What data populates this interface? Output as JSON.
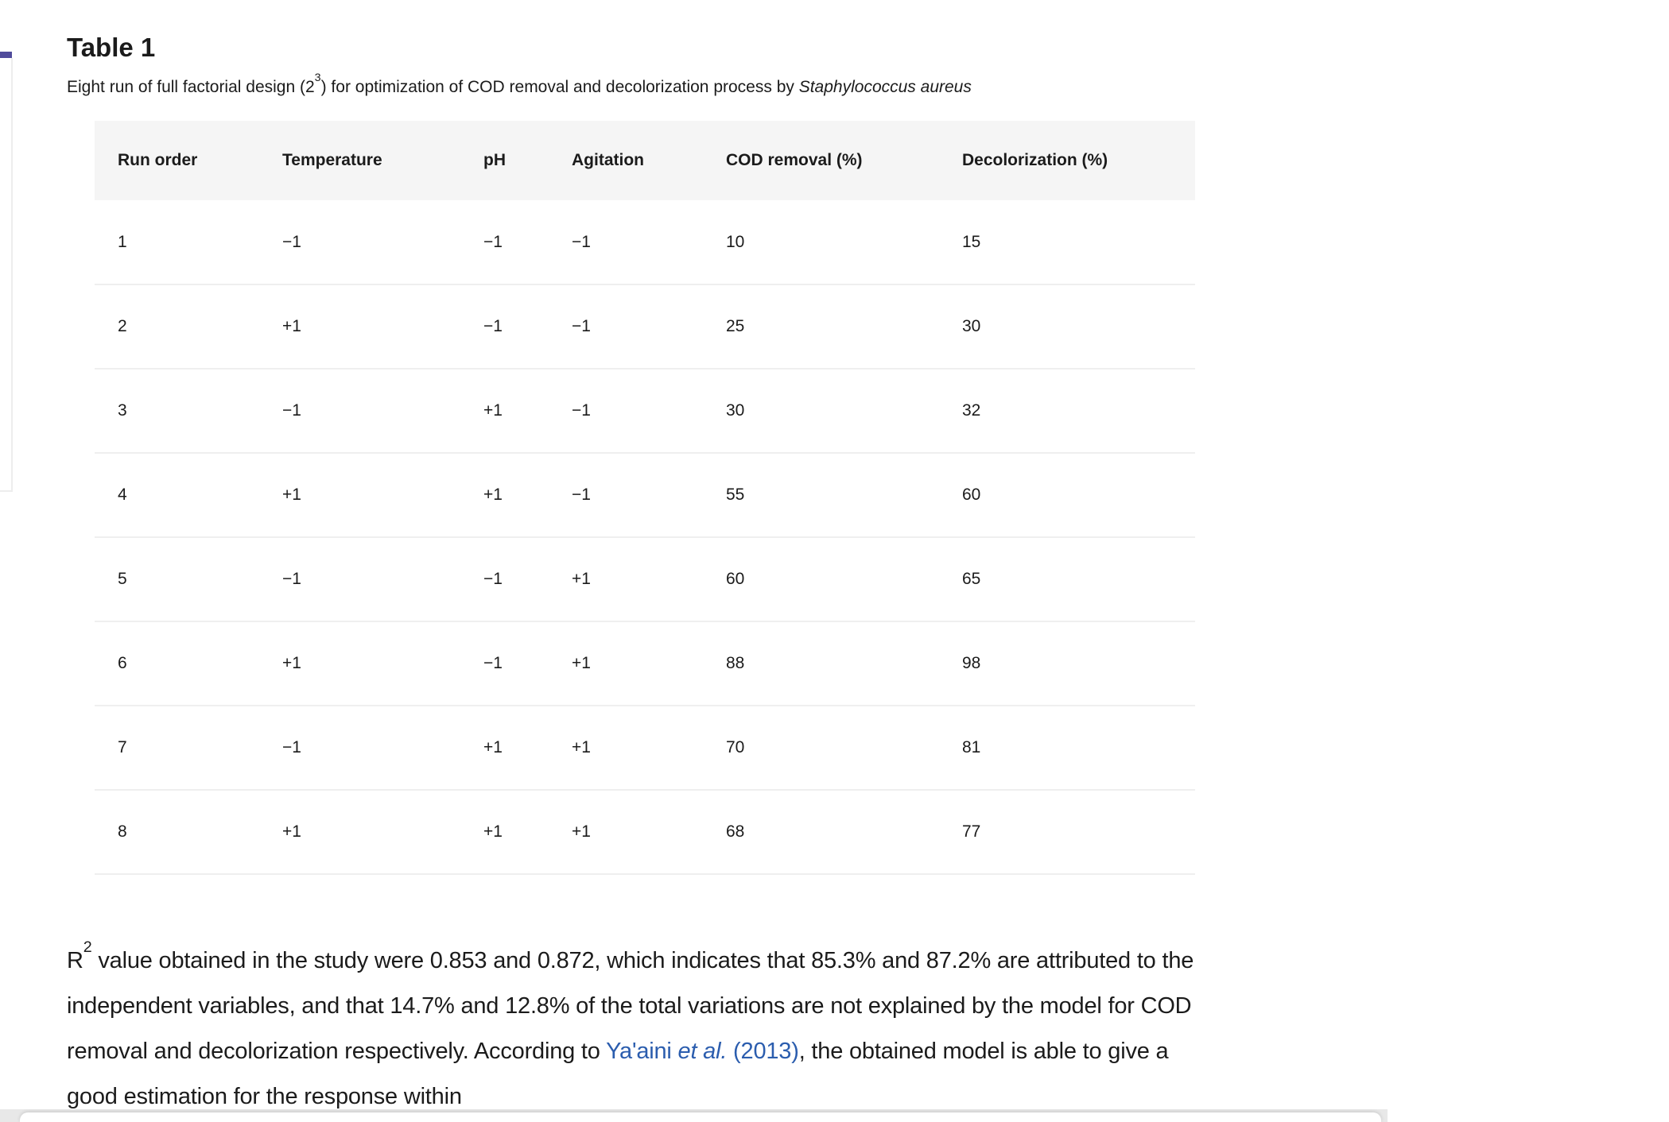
{
  "page": {
    "title": "Table 1",
    "caption": {
      "pre": "Eight run of full factorial design (2",
      "sup": "3",
      "mid": ") for optimization of COD removal and decolorization process by ",
      "species": "Staphylococcus aureus"
    },
    "table": {
      "headers": [
        "Run order",
        "Temperature",
        "pH",
        "Agitation",
        "COD removal (%)",
        "Decolorization (%)"
      ],
      "rows": [
        [
          "1",
          "−1",
          "−1",
          "−1",
          "10",
          "15"
        ],
        [
          "2",
          "+1",
          "−1",
          "−1",
          "25",
          "30"
        ],
        [
          "3",
          "−1",
          "+1",
          "−1",
          "30",
          "32"
        ],
        [
          "4",
          "+1",
          "+1",
          "−1",
          "55",
          "60"
        ],
        [
          "5",
          "−1",
          "−1",
          "+1",
          "60",
          "65"
        ],
        [
          "6",
          "+1",
          "−1",
          "+1",
          "88",
          "98"
        ],
        [
          "7",
          "−1",
          "+1",
          "+1",
          "70",
          "81"
        ],
        [
          "8",
          "+1",
          "+1",
          "+1",
          "68",
          "77"
        ]
      ]
    },
    "paragraph": {
      "r_label": "R",
      "r_sup": "2",
      "body_before_link": " value obtained in the study were 0.853 and 0.872, which indicates that 85.3% and 87.2% are attributed to the independent variables, and that 14.7% and 12.8% of the total variations are not explained by the model for COD removal and decolorization respectively. According to ",
      "link": {
        "pre": "Ya'aini ",
        "etal": "et al.",
        "year": " (2013)"
      },
      "body_after_link": ", the obtained model is able to give a good estimation for the response within"
    },
    "colors": {
      "accent_dash": "#504b9b",
      "link": "#2b5dae",
      "header_bg": "#f5f5f5",
      "row_divider": "#ededed",
      "text": "#1b1b1b"
    }
  }
}
